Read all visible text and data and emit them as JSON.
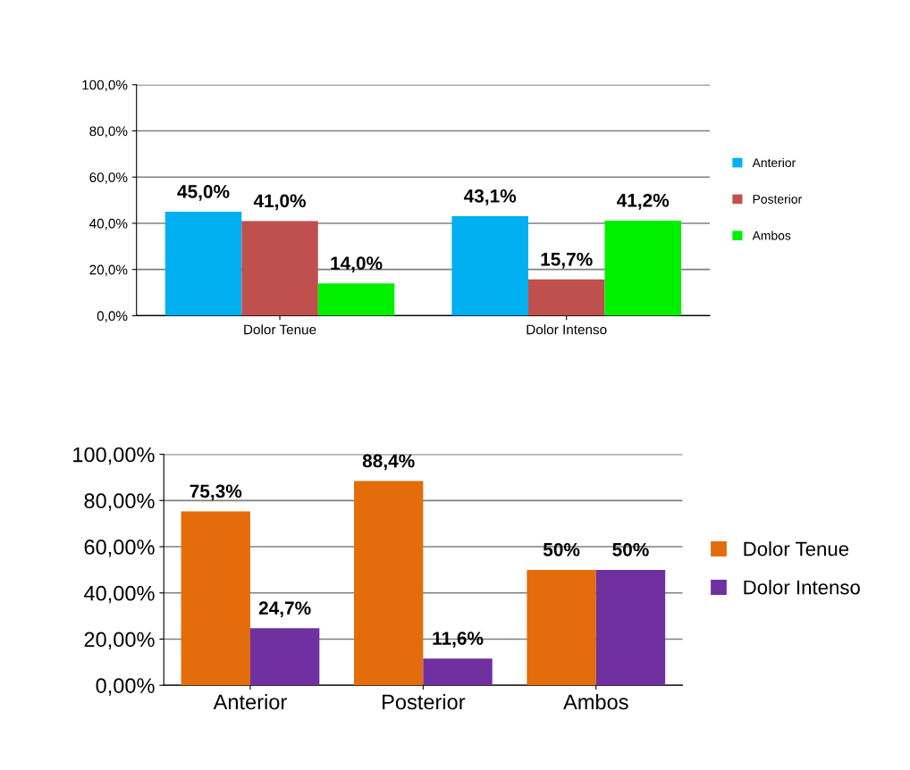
{
  "chart_data": [
    {
      "type": "bar",
      "categories": [
        "Dolor Tenue",
        "Dolor Intenso"
      ],
      "series": [
        {
          "name": "Anterior",
          "color": "#00b0f0",
          "values": [
            45.0,
            43.1
          ],
          "value_labels": [
            "45,0%",
            "43,1%"
          ]
        },
        {
          "name": "Posterior",
          "color": "#c0504d",
          "values": [
            41.0,
            15.7
          ],
          "value_labels": [
            "41,0%",
            "15,7%"
          ]
        },
        {
          "name": "Ambos",
          "color": "#00f000",
          "values": [
            14.0,
            41.2
          ],
          "value_labels": [
            "14,0%",
            "41,2%"
          ]
        }
      ],
      "ylim": [
        0,
        100
      ],
      "yticks": [
        {
          "value": 0,
          "label": "0,0%"
        },
        {
          "value": 20,
          "label": "20,0%"
        },
        {
          "value": 40,
          "label": "40,0%"
        },
        {
          "value": 60,
          "label": "60,0%"
        },
        {
          "value": 80,
          "label": "80,0%"
        },
        {
          "value": 100,
          "label": "100,0%"
        }
      ],
      "grid": "y",
      "legend": "right"
    },
    {
      "type": "bar",
      "categories": [
        "Anterior",
        "Posterior",
        "Ambos"
      ],
      "series": [
        {
          "name": "Dolor Tenue",
          "color": "#e46c0a",
          "values": [
            75.3,
            88.4,
            50
          ],
          "value_labels": [
            "75,3%",
            "88,4%",
            "50%"
          ]
        },
        {
          "name": "Dolor Intenso",
          "color": "#7030a0",
          "values": [
            24.7,
            11.6,
            50
          ],
          "value_labels": [
            "24,7%",
            "11,6%",
            "50%"
          ]
        }
      ],
      "ylim": [
        0,
        100
      ],
      "yticks": [
        {
          "value": 0,
          "label": "0,00%"
        },
        {
          "value": 20,
          "label": "20,00%"
        },
        {
          "value": 40,
          "label": "40,00%"
        },
        {
          "value": 60,
          "label": "60,00%"
        },
        {
          "value": 80,
          "label": "80,00%"
        },
        {
          "value": 100,
          "label": "100,00%"
        }
      ],
      "grid": "y",
      "legend": "right"
    }
  ]
}
